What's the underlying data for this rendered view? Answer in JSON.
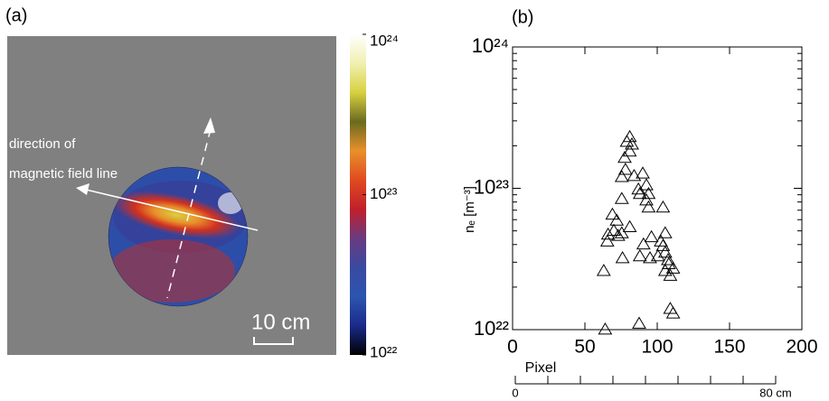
{
  "chart_data": [
    {
      "type": "image",
      "label": "(a)",
      "annotations": [
        "direction of",
        "magnetic field line"
      ],
      "scale_label": "10 cm",
      "log_scale": true,
      "clim": [
        1e+22,
        1e+24
      ],
      "cticks": [
        {
          "value": 1e+22,
          "label": "10²²"
        },
        {
          "value": 1e+23,
          "label": "10²³"
        },
        {
          "value": 1e+24,
          "label": "10²⁴"
        }
      ],
      "colormap": [
        "#000000",
        "#1a2a8a",
        "#2c55b0",
        "#3a4aa0",
        "#6a3a80",
        "#c0202a",
        "#e04a20",
        "#e8902a",
        "#6a6a20",
        "#d8d040",
        "#f0f0b0",
        "#ffffff"
      ]
    },
    {
      "type": "scatter",
      "label": "(b)",
      "xlabel": "Pixel",
      "ylabel": "nₑ [m⁻³]",
      "marker": "triangle",
      "color": "#000000",
      "log_y": true,
      "xlim": [
        0,
        200
      ],
      "ylim": [
        1e+22,
        1e+24
      ],
      "xticks": [
        0,
        50,
        100,
        150,
        200
      ],
      "yticks": [
        {
          "value": 1e+22,
          "label": "10²²"
        },
        {
          "value": 1e+23,
          "label": "10²³"
        },
        {
          "value": 1e+24,
          "label": "10²⁴"
        }
      ],
      "x2lim": [
        0,
        80
      ],
      "x2ticks": [
        {
          "value": 0,
          "label": "0"
        },
        {
          "value": 80,
          "label": "80 cm"
        }
      ],
      "x2minorticks": [
        10,
        20,
        30,
        40,
        50,
        60,
        70
      ],
      "x": [
        81,
        79,
        82.5,
        81,
        77.5,
        78,
        75.5,
        90,
        84,
        92.5,
        87,
        94,
        88,
        75.5,
        92.5,
        94,
        104,
        69,
        72,
        81,
        70,
        75.5,
        66,
        73,
        65.5,
        96,
        105.5,
        102.5,
        90.5,
        104,
        105.5,
        107.5,
        100.5,
        95,
        108,
        111,
        105.5,
        109,
        88,
        76,
        63,
        109,
        111,
        87.5,
        64
      ],
      "values": [
        2.3e+23,
        2.13e+23,
        2.04e+23,
        1.82e+23,
        1.64e+23,
        1.35e+23,
        1.2e+23,
        1.27e+23,
        1.22e+23,
        1.05e+23,
        9.8e+22,
        9.1e+22,
        9.1e+22,
        8.4e+22,
        8.2e+22,
        7.3e+22,
        7.3e+22,
        6.5e+22,
        5.9e+22,
        5.3e+22,
        5e+22,
        4.8e+22,
        4.7e+22,
        4.6e+22,
        4.2e+22,
        4.5e+22,
        4.8e+22,
        4.2e+22,
        4e+22,
        3.9e+22,
        3.5e+22,
        3.1e+22,
        3.3e+22,
        3.2e+22,
        2.9e+22,
        2.7e+22,
        2.6e+22,
        2.4e+22,
        3.3e+22,
        3.2e+22,
        2.6e+22,
        1.4e+22,
        1.3e+22,
        1.1e+22,
        1e+22
      ]
    }
  ]
}
